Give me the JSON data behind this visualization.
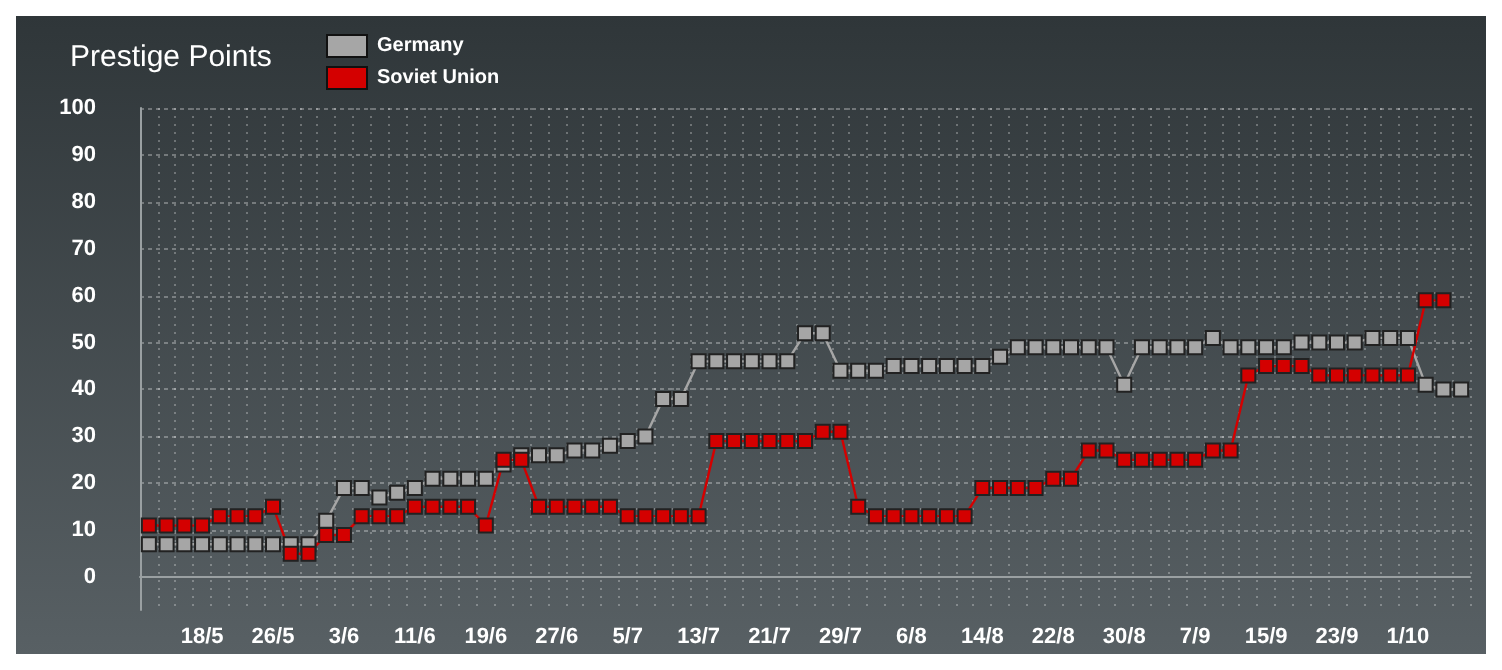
{
  "chart_data": {
    "type": "line",
    "title": "Prestige Points",
    "categories": [
      null,
      null,
      null,
      "18/5",
      null,
      null,
      null,
      "26/5",
      null,
      null,
      null,
      "3/6",
      null,
      null,
      null,
      "11/6",
      null,
      null,
      null,
      "19/6",
      null,
      null,
      null,
      "27/6",
      null,
      null,
      null,
      "5/7",
      null,
      null,
      null,
      "13/7",
      null,
      null,
      null,
      "21/7",
      null,
      null,
      null,
      "29/7",
      null,
      null,
      null,
      "6/8",
      null,
      null,
      null,
      "14/8",
      null,
      null,
      null,
      "22/8",
      null,
      null,
      null,
      "30/8",
      null,
      null,
      null,
      "7/9",
      null,
      null,
      null,
      "15/9",
      null,
      null,
      null,
      "23/9",
      null,
      null,
      null,
      "1/10",
      null,
      null,
      null
    ],
    "series": [
      {
        "name": "Germany",
        "color": "#a6a6a6",
        "values": [
          7,
          7,
          7,
          7,
          7,
          7,
          7,
          7,
          7,
          7,
          12,
          19,
          19,
          17,
          18,
          19,
          21,
          21,
          21,
          21,
          24,
          26,
          26,
          26,
          27,
          27,
          28,
          29,
          30,
          38,
          38,
          46,
          46,
          46,
          46,
          46,
          46,
          52,
          52,
          44,
          44,
          44,
          45,
          45,
          45,
          45,
          45,
          45,
          47,
          49,
          49,
          49,
          49,
          49,
          49,
          41,
          49,
          49,
          49,
          49,
          51,
          49,
          49,
          49,
          49,
          50,
          50,
          50,
          50,
          51,
          51,
          51,
          41,
          40,
          40
        ]
      },
      {
        "name": "Soviet Union",
        "color": "#d40000",
        "values": [
          11,
          11,
          11,
          11,
          13,
          13,
          13,
          15,
          5,
          5,
          9,
          9,
          13,
          13,
          13,
          15,
          15,
          15,
          15,
          11,
          25,
          25,
          15,
          15,
          15,
          15,
          15,
          13,
          13,
          13,
          13,
          13,
          29,
          29,
          29,
          29,
          29,
          29,
          31,
          31,
          15,
          13,
          13,
          13,
          13,
          13,
          13,
          19,
          19,
          19,
          19,
          21,
          21,
          27,
          27,
          25,
          25,
          25,
          25,
          25,
          27,
          27,
          43,
          45,
          45,
          45,
          43,
          43,
          43,
          43,
          43,
          43,
          59,
          59,
          null
        ]
      }
    ],
    "ylim": [
      -7,
      100
    ],
    "yticks": [
      0,
      10,
      20,
      30,
      40,
      50,
      60,
      70,
      80,
      90,
      100
    ],
    "grid": true,
    "legend": "top",
    "marker": "square",
    "line_style": "solid"
  }
}
